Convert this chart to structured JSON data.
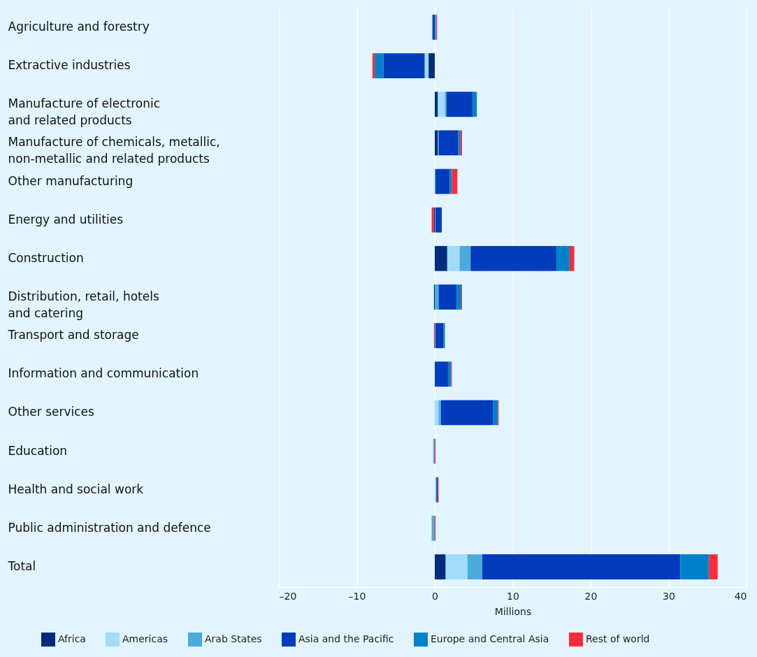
{
  "chart_data": {
    "type": "bar",
    "orientation": "horizontal",
    "stacked": true,
    "xlabel": "Millions",
    "categories": [
      "Agriculture and forestry",
      "Extractive industries",
      "Manufacture of electronic\nand related products",
      "Manufacture of chemicals, metallic,\nnon-metallic and related products",
      "Other manufacturing",
      "Energy and utilities",
      "Construction",
      "Distribution, retail, hotels\nand catering",
      "Transport and storage",
      "Information and communication",
      "Other services",
      "Education",
      "Health and social work",
      "Public administration and defence",
      "Total"
    ],
    "series": [
      {
        "name": "Africa",
        "color": "#002d7f",
        "values": [
          null,
          -0.8,
          0.4,
          0.4,
          null,
          -0.1,
          1.6,
          -0.1,
          null,
          null,
          null,
          null,
          null,
          null,
          1.4
        ]
      },
      {
        "name": "Americas",
        "color": "#a3dbfa",
        "values": [
          null,
          -0.5,
          0.9,
          null,
          null,
          null,
          1.6,
          null,
          null,
          null,
          0.5,
          null,
          0.2,
          null,
          2.8
        ]
      },
      {
        "name": "Arab States",
        "color": "#4aabdc",
        "values": [
          0.1,
          null,
          0.2,
          0.1,
          0.1,
          0.1,
          1.4,
          0.5,
          0.1,
          null,
          0.3,
          -0.2,
          null,
          -0.4,
          1.9
        ]
      },
      {
        "name": "Asia and the Pacific",
        "color": "#003cbb",
        "values": [
          -0.3,
          -5.3,
          3.4,
          2.5,
          1.8,
          0.8,
          11.0,
          2.3,
          1.0,
          1.7,
          6.7,
          null,
          0.2,
          null,
          25.4
        ]
      },
      {
        "name": "Europe and Central Asia",
        "color": "#0082cb",
        "values": [
          0.1,
          -1.1,
          0.5,
          0.3,
          0.3,
          null,
          1.7,
          0.6,
          0.2,
          0.4,
          0.6,
          null,
          null,
          null,
          3.7
        ]
      },
      {
        "name": "Rest of world",
        "color": "#ff2a3a",
        "values": [
          0.1,
          -0.3,
          null,
          0.2,
          0.7,
          -0.3,
          0.6,
          0.1,
          -0.1,
          0.1,
          0.1,
          0.1,
          0.1,
          0.1,
          1.1
        ]
      }
    ],
    "xlim": [
      -20,
      40
    ],
    "xticks": [
      {
        "value": -20,
        "label": "–20"
      },
      {
        "value": -10,
        "label": "–10"
      },
      0,
      10,
      20,
      30,
      40
    ],
    "grid": "x",
    "legend": "bottom"
  }
}
